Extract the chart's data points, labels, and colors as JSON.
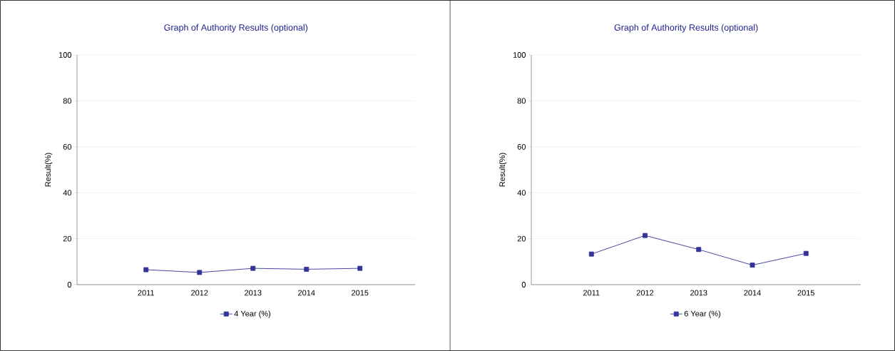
{
  "chart_data": [
    {
      "type": "line",
      "title": "Graph of Authority Results (optional)",
      "ylabel": "Result(%)",
      "categories": [
        "2011",
        "2012",
        "2013",
        "2014",
        "2015"
      ],
      "series": [
        {
          "name": "4 Year (%)",
          "color": "#333399",
          "values": [
            6.5,
            5.3,
            7.1,
            6.7,
            7.1
          ]
        }
      ],
      "ylim": [
        0,
        100
      ],
      "yticks": [
        0,
        20,
        40,
        60,
        80,
        100
      ],
      "grid": "y",
      "legend": "bottom",
      "marker": "square"
    },
    {
      "type": "line",
      "title": "Graph of Authority Results (optional)",
      "ylabel": "Result(%)",
      "categories": [
        "2011",
        "2012",
        "2013",
        "2014",
        "2015"
      ],
      "series": [
        {
          "name": "6 Year (%)",
          "color": "#333399",
          "values": [
            13.3,
            21.4,
            15.3,
            8.5,
            13.6
          ]
        }
      ],
      "ylim": [
        0,
        100
      ],
      "yticks": [
        0,
        20,
        40,
        60,
        80,
        100
      ],
      "grid": "y",
      "legend": "bottom",
      "marker": "square"
    }
  ]
}
